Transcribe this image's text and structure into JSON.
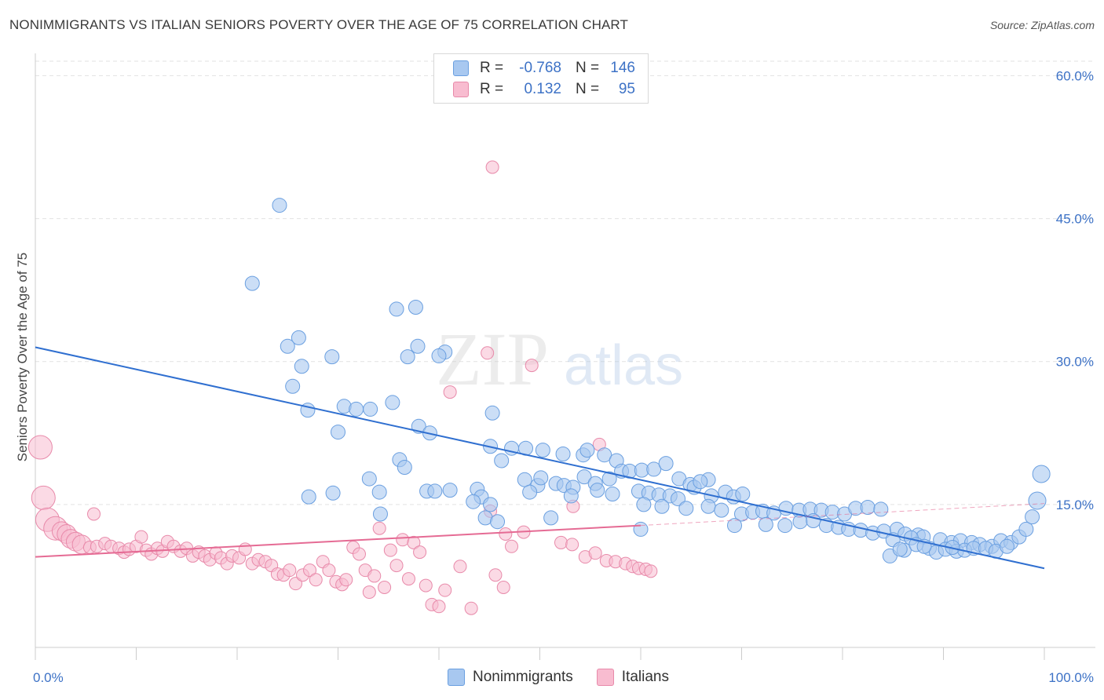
{
  "title": "NONIMMIGRANTS VS ITALIAN SENIORS POVERTY OVER THE AGE OF 75 CORRELATION CHART",
  "source": "Source: ZipAtlas.com",
  "watermark": {
    "zip": "ZIP",
    "atlas": "atlas"
  },
  "legend": {
    "rows": [
      {
        "r_label": "R =",
        "r_value": "-0.768",
        "n_label": "N =",
        "n_value": "146",
        "color": "#a8c8f0",
        "border": "#6a9fe0"
      },
      {
        "r_label": "R =",
        "r_value": "0.132",
        "n_label": "N =",
        "n_value": "95",
        "color": "#f8bcd0",
        "border": "#e88aaa"
      }
    ]
  },
  "bottom_legend": {
    "series1": "Nonimmigrants",
    "series2": "Italians"
  },
  "chart_data": {
    "type": "scatter",
    "title": "NONIMMIGRANTS VS ITALIAN SENIORS POVERTY OVER THE AGE OF 75 CORRELATION CHART",
    "xlabel": "",
    "ylabel": "Seniors Poverty Over the Age of 75",
    "xlim": [
      0,
      100
    ],
    "ylim": [
      0,
      63
    ],
    "x_tick_labels": [
      "0.0%",
      "100.0%"
    ],
    "y_ticks": [
      15,
      30,
      45,
      60
    ],
    "y_tick_labels": [
      "15.0%",
      "30.0%",
      "45.0%",
      "60.0%"
    ],
    "grid": true,
    "colors": {
      "nonimmigrants_fill": "#a8c8f0",
      "nonimmigrants_stroke": "#6a9fe0",
      "nonimmigrants_line": "#2f6fd0",
      "italians_fill": "#f8bcd0",
      "italians_stroke": "#e88aaa",
      "italians_line": "#e56b94"
    },
    "series": [
      {
        "name": "Nonimmigrants",
        "trend": {
          "x": [
            0,
            100
          ],
          "y": [
            31.5,
            8.3
          ]
        },
        "points": [
          [
            24.2,
            46.4
          ],
          [
            21.5,
            38.2
          ],
          [
            26.1,
            32.5
          ],
          [
            25.0,
            31.6
          ],
          [
            26.4,
            29.5
          ],
          [
            29.4,
            30.5
          ],
          [
            35.8,
            35.5
          ],
          [
            37.7,
            35.7
          ],
          [
            37.9,
            31.6
          ],
          [
            36.9,
            30.5
          ],
          [
            40.6,
            31.0
          ],
          [
            40.0,
            30.6
          ],
          [
            25.5,
            27.4
          ],
          [
            27.0,
            24.9
          ],
          [
            30.6,
            25.3
          ],
          [
            31.8,
            25.0
          ],
          [
            33.2,
            25.0
          ],
          [
            35.4,
            25.7
          ],
          [
            30.0,
            22.6
          ],
          [
            38.0,
            23.2
          ],
          [
            39.1,
            22.5
          ],
          [
            45.3,
            24.6
          ],
          [
            45.1,
            21.1
          ],
          [
            47.2,
            20.9
          ],
          [
            48.6,
            20.9
          ],
          [
            50.3,
            20.7
          ],
          [
            36.1,
            19.7
          ],
          [
            36.6,
            18.9
          ],
          [
            46.2,
            19.6
          ],
          [
            52.3,
            20.3
          ],
          [
            54.3,
            20.2
          ],
          [
            54.7,
            20.7
          ],
          [
            56.4,
            20.2
          ],
          [
            57.6,
            19.6
          ],
          [
            48.5,
            17.6
          ],
          [
            49.8,
            17.0
          ],
          [
            50.1,
            17.8
          ],
          [
            51.6,
            17.2
          ],
          [
            52.4,
            17.0
          ],
          [
            53.3,
            16.8
          ],
          [
            54.4,
            17.9
          ],
          [
            55.5,
            17.2
          ],
          [
            56.9,
            17.7
          ],
          [
            58.1,
            18.5
          ],
          [
            58.9,
            18.5
          ],
          [
            60.1,
            18.6
          ],
          [
            61.3,
            18.7
          ],
          [
            62.5,
            19.3
          ],
          [
            63.8,
            17.7
          ],
          [
            64.9,
            17.1
          ],
          [
            65.3,
            16.8
          ],
          [
            66.7,
            17.6
          ],
          [
            65.9,
            17.4
          ],
          [
            33.1,
            17.7
          ],
          [
            34.1,
            16.3
          ],
          [
            38.8,
            16.4
          ],
          [
            39.6,
            16.4
          ],
          [
            41.1,
            16.5
          ],
          [
            43.8,
            16.6
          ],
          [
            44.2,
            15.8
          ],
          [
            49.0,
            16.3
          ],
          [
            53.1,
            15.9
          ],
          [
            55.7,
            16.5
          ],
          [
            57.2,
            16.1
          ],
          [
            59.8,
            16.4
          ],
          [
            60.8,
            16.2
          ],
          [
            61.8,
            16.0
          ],
          [
            62.9,
            15.9
          ],
          [
            63.7,
            15.6
          ],
          [
            67.0,
            15.9
          ],
          [
            68.4,
            16.3
          ],
          [
            69.2,
            15.8
          ],
          [
            70.1,
            16.1
          ],
          [
            27.1,
            15.8
          ],
          [
            29.5,
            16.2
          ],
          [
            43.4,
            15.3
          ],
          [
            45.1,
            15.0
          ],
          [
            60.3,
            15.0
          ],
          [
            62.1,
            14.8
          ],
          [
            64.5,
            14.6
          ],
          [
            66.7,
            14.8
          ],
          [
            68.0,
            14.4
          ],
          [
            70.0,
            14.0
          ],
          [
            71.1,
            14.2
          ],
          [
            72.1,
            14.3
          ],
          [
            73.2,
            14.1
          ],
          [
            74.4,
            14.6
          ],
          [
            75.7,
            14.4
          ],
          [
            76.8,
            14.5
          ],
          [
            77.9,
            14.4
          ],
          [
            79.0,
            14.2
          ],
          [
            80.2,
            14.0
          ],
          [
            81.3,
            14.6
          ],
          [
            82.5,
            14.7
          ],
          [
            83.8,
            14.5
          ],
          [
            34.2,
            14.0
          ],
          [
            44.6,
            13.6
          ],
          [
            45.8,
            13.2
          ],
          [
            51.1,
            13.6
          ],
          [
            69.3,
            12.8
          ],
          [
            72.4,
            12.9
          ],
          [
            74.3,
            12.8
          ],
          [
            75.8,
            13.2
          ],
          [
            77.1,
            13.3
          ],
          [
            78.4,
            12.8
          ],
          [
            79.6,
            12.6
          ],
          [
            80.6,
            12.4
          ],
          [
            81.8,
            12.3
          ],
          [
            83.0,
            12.0
          ],
          [
            84.1,
            12.2
          ],
          [
            85.4,
            12.4
          ],
          [
            86.2,
            11.9
          ],
          [
            87.5,
            11.8
          ],
          [
            88.0,
            11.6
          ],
          [
            89.7,
            11.3
          ],
          [
            90.8,
            11.0
          ],
          [
            91.7,
            11.2
          ],
          [
            92.8,
            11.0
          ],
          [
            93.6,
            10.8
          ],
          [
            94.8,
            10.6
          ],
          [
            95.7,
            11.2
          ],
          [
            96.7,
            11.0
          ],
          [
            97.5,
            11.6
          ],
          [
            98.2,
            12.4
          ],
          [
            98.8,
            13.7
          ],
          [
            99.3,
            15.4
          ],
          [
            99.7,
            18.2
          ],
          [
            60.0,
            12.4
          ],
          [
            85.0,
            11.3
          ],
          [
            86.8,
            11.5
          ],
          [
            88.6,
            10.4
          ],
          [
            89.3,
            10.0
          ],
          [
            90.2,
            10.3
          ],
          [
            91.3,
            10.1
          ],
          [
            92.1,
            10.2
          ],
          [
            93.0,
            10.4
          ],
          [
            94.2,
            10.4
          ],
          [
            95.2,
            10.1
          ],
          [
            96.3,
            10.6
          ],
          [
            86.1,
            10.2
          ],
          [
            87.3,
            10.8
          ],
          [
            88.1,
            10.6
          ],
          [
            90.9,
            10.5
          ],
          [
            84.7,
            9.6
          ],
          [
            85.7,
            10.3
          ]
        ]
      },
      {
        "name": "Italians",
        "trend": {
          "x": [
            0,
            60
          ],
          "y": [
            9.5,
            12.8
          ]
        },
        "trend_dashed": {
          "x": [
            60,
            100
          ],
          "y": [
            12.8,
            15.1
          ]
        },
        "points": [
          [
            45.3,
            50.4
          ],
          [
            44.8,
            30.9
          ],
          [
            49.2,
            29.6
          ],
          [
            41.1,
            26.8
          ],
          [
            55.9,
            21.3
          ],
          [
            0.5,
            21.0
          ],
          [
            0.8,
            15.7
          ],
          [
            5.8,
            14.0
          ],
          [
            53.3,
            14.8
          ],
          [
            1.2,
            13.4
          ],
          [
            2.0,
            12.5
          ],
          [
            2.6,
            12.2
          ],
          [
            3.1,
            11.9
          ],
          [
            3.5,
            11.4
          ],
          [
            4.0,
            11.1
          ],
          [
            4.6,
            10.8
          ],
          [
            5.4,
            10.5
          ],
          [
            6.1,
            10.6
          ],
          [
            6.9,
            10.9
          ],
          [
            7.5,
            10.6
          ],
          [
            8.3,
            10.4
          ],
          [
            8.8,
            10.0
          ],
          [
            9.3,
            10.3
          ],
          [
            10.0,
            10.6
          ],
          [
            10.5,
            11.6
          ],
          [
            11.0,
            10.2
          ],
          [
            11.5,
            9.8
          ],
          [
            12.1,
            10.4
          ],
          [
            12.6,
            10.1
          ],
          [
            13.1,
            11.1
          ],
          [
            13.7,
            10.6
          ],
          [
            14.4,
            10.1
          ],
          [
            15.0,
            10.4
          ],
          [
            15.6,
            9.6
          ],
          [
            16.2,
            10.0
          ],
          [
            16.8,
            9.6
          ],
          [
            17.3,
            9.2
          ],
          [
            17.9,
            9.9
          ],
          [
            18.4,
            9.4
          ],
          [
            19.0,
            8.8
          ],
          [
            19.5,
            9.6
          ],
          [
            20.2,
            9.4
          ],
          [
            20.8,
            10.3
          ],
          [
            21.5,
            8.8
          ],
          [
            22.1,
            9.2
          ],
          [
            22.8,
            9.0
          ],
          [
            23.4,
            8.6
          ],
          [
            24.0,
            7.7
          ],
          [
            24.6,
            7.6
          ],
          [
            25.2,
            8.1
          ],
          [
            25.8,
            6.7
          ],
          [
            26.5,
            7.6
          ],
          [
            27.2,
            8.1
          ],
          [
            27.8,
            7.1
          ],
          [
            28.5,
            9.0
          ],
          [
            29.1,
            8.1
          ],
          [
            29.8,
            6.9
          ],
          [
            30.4,
            6.6
          ],
          [
            30.8,
            7.1
          ],
          [
            31.5,
            10.5
          ],
          [
            32.1,
            9.8
          ],
          [
            32.7,
            8.1
          ],
          [
            33.1,
            5.8
          ],
          [
            33.6,
            7.5
          ],
          [
            34.1,
            12.5
          ],
          [
            34.6,
            6.3
          ],
          [
            35.2,
            10.2
          ],
          [
            35.8,
            8.6
          ],
          [
            36.4,
            11.3
          ],
          [
            37.0,
            7.2
          ],
          [
            37.5,
            11.0
          ],
          [
            38.1,
            10.0
          ],
          [
            38.7,
            6.5
          ],
          [
            39.3,
            4.5
          ],
          [
            40.0,
            4.3
          ],
          [
            40.6,
            6.0
          ],
          [
            42.1,
            8.5
          ],
          [
            43.2,
            4.1
          ],
          [
            45.1,
            14.3
          ],
          [
            45.6,
            7.6
          ],
          [
            46.4,
            6.3
          ],
          [
            46.6,
            11.9
          ],
          [
            47.2,
            10.6
          ],
          [
            48.4,
            12.1
          ],
          [
            52.1,
            11.0
          ],
          [
            53.2,
            10.8
          ],
          [
            54.5,
            9.5
          ],
          [
            55.5,
            9.9
          ],
          [
            56.6,
            9.1
          ],
          [
            57.5,
            9.0
          ],
          [
            58.5,
            8.8
          ],
          [
            59.2,
            8.5
          ],
          [
            59.8,
            8.3
          ],
          [
            60.5,
            8.2
          ],
          [
            61.0,
            8.0
          ]
        ]
      }
    ]
  }
}
